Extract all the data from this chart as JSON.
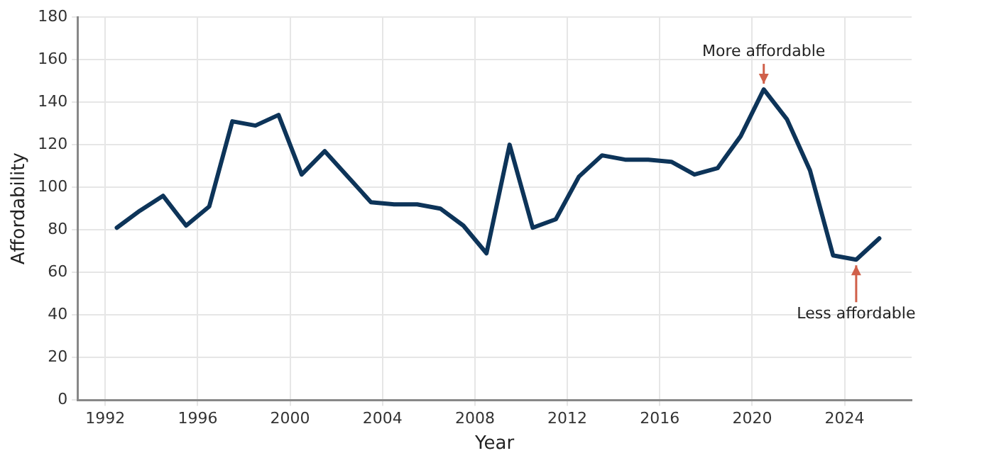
{
  "chart_data": {
    "type": "line",
    "xlabel": "Year",
    "ylabel": "Affordability",
    "x": [
      1992.5,
      1993.5,
      1994.5,
      1995.5,
      1996.5,
      1997.5,
      1998.5,
      1999.5,
      2000.5,
      2001.5,
      2002.5,
      2003.5,
      2004.5,
      2005.5,
      2006.5,
      2007.5,
      2008.5,
      2009.5,
      2010.5,
      2011.5,
      2012.5,
      2013.5,
      2014.5,
      2015.5,
      2016.5,
      2017.5,
      2018.5,
      2019.5,
      2020.5,
      2021.5,
      2022.5,
      2023.5,
      2024.5,
      2025.5
    ],
    "series": [
      {
        "color": "#0d3459",
        "values": [
          81,
          89,
          96,
          82,
          91,
          131,
          129,
          134,
          106,
          117,
          105,
          93,
          92,
          92,
          90,
          82,
          69,
          120,
          81,
          85,
          105,
          115,
          113,
          113,
          112,
          106,
          109,
          124,
          146,
          132,
          108,
          68,
          66,
          76
        ]
      }
    ],
    "xlim": [
      1990.8,
      2026.9
    ],
    "xticks": [
      1992,
      1996,
      2000,
      2004,
      2008,
      2012,
      2016,
      2020,
      2024
    ],
    "ylim": [
      0,
      180
    ],
    "yticks": [
      0,
      20,
      40,
      60,
      80,
      100,
      120,
      140,
      160,
      180
    ],
    "grid": true,
    "marker": "none",
    "line_style": "solid",
    "annotations": [
      {
        "text": "More affordable",
        "x": 2020.5,
        "y": 146
      },
      {
        "text": "Less affordable",
        "x": 2024.5,
        "y": 66
      }
    ]
  }
}
